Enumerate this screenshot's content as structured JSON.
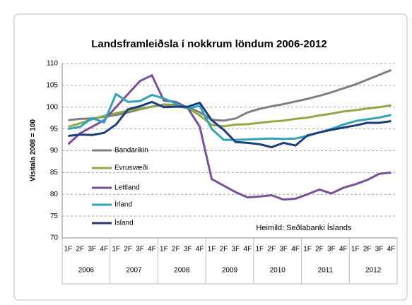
{
  "chart_data": {
    "type": "line",
    "title": "Landsframleiðsla í nokkrum löndum 2006-2012",
    "y_label": "Vísitala 2008 = 100",
    "annotation": "Heimild: Seðlabanki Íslands",
    "categories": [
      "1F",
      "2F",
      "3F",
      "4F",
      "1F",
      "2F",
      "3F",
      "4F",
      "1F",
      "2F",
      "3F",
      "4F",
      "1F",
      "2F",
      "3F",
      "4F",
      "1F",
      "2F",
      "3F",
      "4F",
      "1F",
      "2F",
      "3F",
      "4F",
      "1F",
      "2F",
      "3F",
      "4F"
    ],
    "years": [
      "2006",
      "2007",
      "2008",
      "2009",
      "2010",
      "2011",
      "2012"
    ],
    "ylim": [
      70,
      110
    ],
    "yticks": [
      70,
      75,
      80,
      85,
      90,
      95,
      100,
      105,
      110
    ],
    "grid": true,
    "legend_position": "left",
    "series": [
      {
        "name": "Bandaríkin",
        "color": "#7f7f7f",
        "values": [
          97,
          97.3,
          97.4,
          97.8,
          98.2,
          98.8,
          99.5,
          100.1,
          100.6,
          100.5,
          100,
          98.8,
          97.1,
          96.9,
          97.4,
          98.8,
          99.6,
          100.2,
          100.7,
          101.3,
          101.9,
          102.6,
          103.4,
          104.3,
          105.2,
          106.3,
          107.4,
          108.5
        ]
      },
      {
        "name": "Evrusvæði",
        "color": "#8fa946",
        "values": [
          95.5,
          96.3,
          97.2,
          98,
          98.6,
          99.2,
          99.7,
          100.1,
          100.5,
          100.2,
          99.8,
          98.1,
          95.9,
          95.6,
          96,
          96.1,
          96.4,
          96.7,
          96.9,
          97.3,
          97.6,
          98.1,
          98.5,
          99,
          99.3,
          99.7,
          100,
          100.4
        ]
      },
      {
        "name": "Lettland",
        "color": "#7a509a",
        "values": [
          91.5,
          94,
          95.5,
          97,
          100,
          103,
          106,
          107.3,
          101.5,
          101.2,
          99.8,
          95.5,
          83.5,
          82,
          80.5,
          79.3,
          79.5,
          79.8,
          78.8,
          79,
          80,
          81.1,
          80.2,
          81.5,
          82.3,
          83.3,
          84.7,
          85
        ]
      },
      {
        "name": "Írland",
        "color": "#31a2b8",
        "values": [
          95,
          95.5,
          97.5,
          96.5,
          103,
          101.2,
          101.4,
          102.8,
          102,
          100.8,
          99.7,
          100.3,
          95,
          92.5,
          92.5,
          92.6,
          92.7,
          92.8,
          92.7,
          92.8,
          93.4,
          94.2,
          95,
          96,
          96.8,
          97.2,
          97.6,
          98.2
        ]
      },
      {
        "name": "Ísland",
        "color": "#1f3d7a",
        "values": [
          93.4,
          93.7,
          93.6,
          94.1,
          96,
          99.5,
          100.2,
          101.2,
          100,
          100.1,
          100.1,
          101,
          97,
          94.8,
          92,
          91.8,
          91.5,
          90.8,
          91.8,
          91.2,
          93.5,
          94.2,
          94.8,
          95.3,
          95.8,
          96.4,
          96.4,
          96.8
        ]
      }
    ]
  }
}
